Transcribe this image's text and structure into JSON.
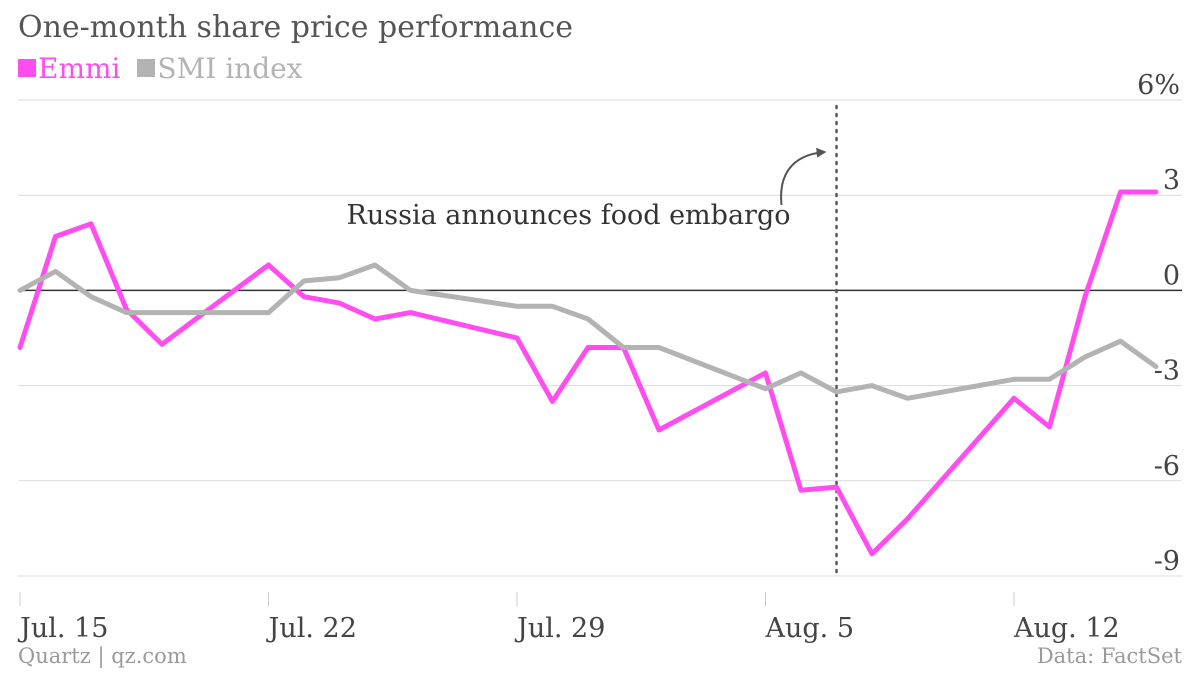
{
  "title": "One-month share price performance",
  "legend": [
    {
      "name": "Emmi",
      "color": "#ff4df0"
    },
    {
      "name": "SMI index",
      "color": "#b3b3b3"
    }
  ],
  "footer": {
    "source_left": "Quartz | qz.com",
    "source_right": "Data: FactSet"
  },
  "annotation": {
    "text": "Russia announces food embargo",
    "date": "2014-08-06"
  },
  "chart_data": {
    "type": "line",
    "x": [
      "2014-07-14",
      "2014-07-15",
      "2014-07-16",
      "2014-07-17",
      "2014-07-18",
      "2014-07-21",
      "2014-07-22",
      "2014-07-23",
      "2014-07-24",
      "2014-07-25",
      "2014-07-28",
      "2014-07-29",
      "2014-07-30",
      "2014-07-31",
      "2014-08-01",
      "2014-08-04",
      "2014-08-05",
      "2014-08-06",
      "2014-08-07",
      "2014-08-08",
      "2014-08-11",
      "2014-08-12",
      "2014-08-13",
      "2014-08-14",
      "2014-08-15"
    ],
    "series": [
      {
        "name": "Emmi",
        "color": "#ff4df0",
        "values": [
          -1.8,
          1.7,
          2.1,
          -0.6,
          -1.7,
          0.8,
          -0.2,
          -0.4,
          -0.9,
          -0.7,
          -1.5,
          -3.5,
          -1.8,
          -1.8,
          -4.4,
          -2.6,
          -6.3,
          -6.2,
          -8.3,
          -7.2,
          -3.4,
          -4.3,
          -0.2,
          3.1,
          3.1
        ],
        "line_end": "2014-08-15"
      },
      {
        "name": "SMI index",
        "color": "#b3b3b3",
        "values": [
          0.0,
          0.6,
          -0.2,
          -0.7,
          -0.7,
          -0.7,
          0.3,
          0.4,
          0.8,
          0.0,
          -0.5,
          -0.5,
          -0.9,
          -1.8,
          -1.8,
          -3.1,
          -2.6,
          -3.2,
          -3.0,
          -3.4,
          -2.8,
          -2.8,
          -2.1,
          -1.6,
          -2.4
        ]
      }
    ],
    "y_ticks": [
      "6%",
      "3",
      "0",
      "-3",
      "-6",
      "-9"
    ],
    "y_tick_values": [
      6,
      3,
      0,
      -3,
      -6,
      -9
    ],
    "x_ticks": [
      {
        "label": "Jul. 15",
        "date": "2014-07-14"
      },
      {
        "label": "Jul. 22",
        "date": "2014-07-21"
      },
      {
        "label": "Jul. 29",
        "date": "2014-07-28"
      },
      {
        "label": "Aug. 5",
        "date": "2014-08-04"
      },
      {
        "label": "Aug. 12",
        "date": "2014-08-11"
      }
    ],
    "ylim": [
      -9,
      6
    ],
    "grid": true,
    "legend_position": "top-left"
  }
}
